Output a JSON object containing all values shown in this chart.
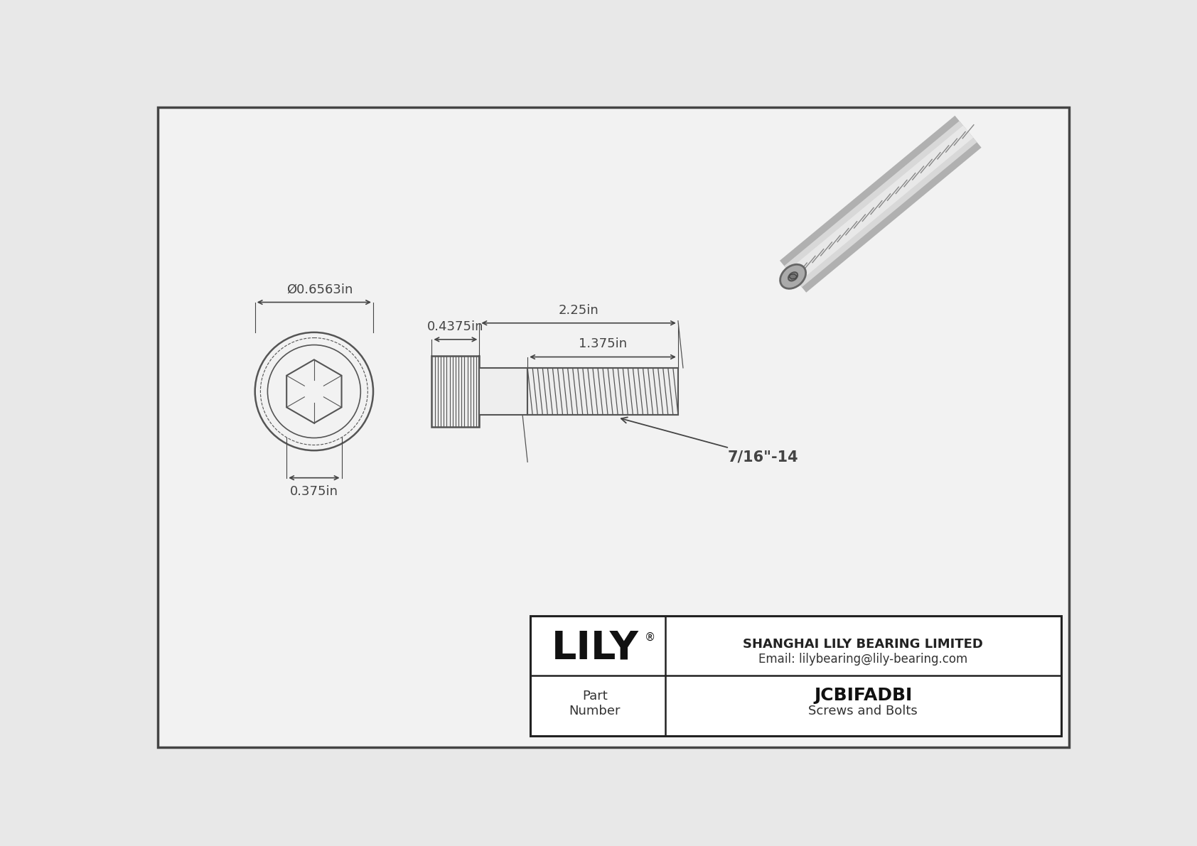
{
  "bg_color": "#e8e8e8",
  "inner_bg": "#f2f2f2",
  "border_color": "#555555",
  "line_color": "#555555",
  "dim_color": "#444444",
  "title": "JCBIFADBI",
  "subtitle": "Screws and Bolts",
  "company": "SHANGHAI LILY BEARING LIMITED",
  "email": "Email: lilybearing@lily-bearing.com",
  "part_label": "Part\nNumber",
  "lily_text": "LILY",
  "dim_head_diameter": "Ø0.6563in",
  "dim_drive_size": "0.375in",
  "dim_head_length": "0.4375in",
  "dim_total_length": "2.25in",
  "dim_thread_length": "1.375in",
  "dim_thread_label": "7/16\"-14"
}
